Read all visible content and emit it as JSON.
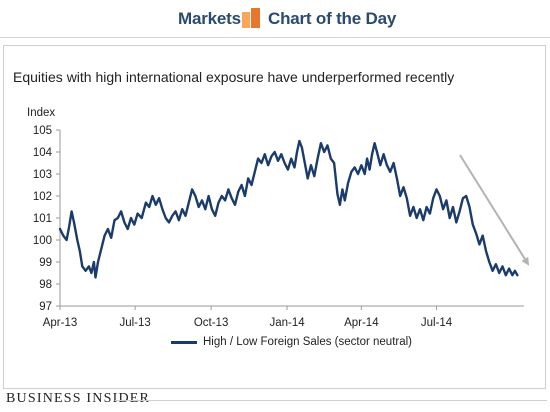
{
  "header": {
    "left_word": "Markets",
    "right_word": "Chart of the Day",
    "logo_colors": [
      "#f7a65a",
      "#e8772e"
    ]
  },
  "footer": {
    "brand": "Business Insider"
  },
  "colors": {
    "series": "#1b3c6b",
    "trend_arrow": "#b3b3b3",
    "header_text": "#2b4a6f"
  },
  "chart_data": {
    "type": "line",
    "title": "Equities with high international exposure have underperformed recently",
    "ylabel": "Index",
    "xlabel": "",
    "ylim": [
      97,
      105
    ],
    "yticks": [
      97,
      98,
      99,
      100,
      101,
      102,
      103,
      104,
      105
    ],
    "xlim": [
      "2013-04-01",
      "2014-10-15"
    ],
    "xticks": [
      {
        "label": "Apr-13",
        "date": "2013-04-01"
      },
      {
        "label": "Jul-13",
        "date": "2013-07-01"
      },
      {
        "label": "Oct-13",
        "date": "2013-10-01"
      },
      {
        "label": "Jan-14",
        "date": "2014-01-01"
      },
      {
        "label": "Apr-14",
        "date": "2014-04-01"
      },
      {
        "label": "Jul-14",
        "date": "2014-07-01"
      }
    ],
    "grid": false,
    "legend": "bottom",
    "series": [
      {
        "name": "High / Low Foreign Sales (sector neutral)",
        "points": [
          [
            "2013-04-01",
            100.5
          ],
          [
            "2013-04-05",
            100.2
          ],
          [
            "2013-04-09",
            100.0
          ],
          [
            "2013-04-12",
            100.6
          ],
          [
            "2013-04-15",
            101.3
          ],
          [
            "2013-04-18",
            100.8
          ],
          [
            "2013-04-22",
            100.0
          ],
          [
            "2013-04-25",
            99.5
          ],
          [
            "2013-04-28",
            98.8
          ],
          [
            "2013-05-02",
            98.6
          ],
          [
            "2013-05-06",
            98.8
          ],
          [
            "2013-05-09",
            98.5
          ],
          [
            "2013-05-12",
            99.0
          ],
          [
            "2013-05-14",
            98.3
          ],
          [
            "2013-05-17",
            99.0
          ],
          [
            "2013-05-21",
            99.6
          ],
          [
            "2013-05-25",
            100.2
          ],
          [
            "2013-05-29",
            100.5
          ],
          [
            "2013-06-02",
            100.1
          ],
          [
            "2013-06-06",
            100.9
          ],
          [
            "2013-06-10",
            101.0
          ],
          [
            "2013-06-14",
            101.3
          ],
          [
            "2013-06-18",
            100.8
          ],
          [
            "2013-06-22",
            100.5
          ],
          [
            "2013-06-26",
            101.0
          ],
          [
            "2013-06-30",
            100.7
          ],
          [
            "2013-07-04",
            101.2
          ],
          [
            "2013-07-09",
            101.0
          ],
          [
            "2013-07-14",
            101.7
          ],
          [
            "2013-07-18",
            101.5
          ],
          [
            "2013-07-22",
            102.0
          ],
          [
            "2013-07-26",
            101.6
          ],
          [
            "2013-07-30",
            101.9
          ],
          [
            "2013-08-03",
            101.4
          ],
          [
            "2013-08-07",
            101.0
          ],
          [
            "2013-08-11",
            100.8
          ],
          [
            "2013-08-15",
            101.1
          ],
          [
            "2013-08-19",
            101.3
          ],
          [
            "2013-08-23",
            100.9
          ],
          [
            "2013-08-27",
            101.4
          ],
          [
            "2013-08-31",
            101.1
          ],
          [
            "2013-09-04",
            101.7
          ],
          [
            "2013-09-08",
            102.3
          ],
          [
            "2013-09-12",
            102.0
          ],
          [
            "2013-09-16",
            101.5
          ],
          [
            "2013-09-20",
            101.8
          ],
          [
            "2013-09-24",
            101.4
          ],
          [
            "2013-09-28",
            102.0
          ],
          [
            "2013-10-02",
            101.4
          ],
          [
            "2013-10-06",
            101.1
          ],
          [
            "2013-10-10",
            101.7
          ],
          [
            "2013-10-14",
            102.0
          ],
          [
            "2013-10-18",
            101.8
          ],
          [
            "2013-10-22",
            102.3
          ],
          [
            "2013-10-26",
            101.9
          ],
          [
            "2013-10-30",
            101.6
          ],
          [
            "2013-11-03",
            102.2
          ],
          [
            "2013-11-07",
            102.5
          ],
          [
            "2013-11-11",
            102.0
          ],
          [
            "2013-11-15",
            102.8
          ],
          [
            "2013-11-19",
            102.5
          ],
          [
            "2013-11-23",
            103.1
          ],
          [
            "2013-11-27",
            103.7
          ],
          [
            "2013-12-01",
            103.5
          ],
          [
            "2013-12-05",
            103.9
          ],
          [
            "2013-12-09",
            103.4
          ],
          [
            "2013-12-13",
            103.8
          ],
          [
            "2013-12-17",
            104.0
          ],
          [
            "2013-12-21",
            103.6
          ],
          [
            "2013-12-25",
            103.9
          ],
          [
            "2013-12-29",
            103.5
          ],
          [
            "2014-01-02",
            103.2
          ],
          [
            "2014-01-06",
            103.7
          ],
          [
            "2014-01-10",
            103.3
          ],
          [
            "2014-01-13",
            104.0
          ],
          [
            "2014-01-16",
            104.5
          ],
          [
            "2014-01-19",
            104.2
          ],
          [
            "2014-01-22",
            103.6
          ],
          [
            "2014-01-26",
            102.8
          ],
          [
            "2014-01-30",
            103.4
          ],
          [
            "2014-02-03",
            102.9
          ],
          [
            "2014-02-07",
            103.7
          ],
          [
            "2014-02-11",
            104.4
          ],
          [
            "2014-02-15",
            104.0
          ],
          [
            "2014-02-19",
            104.3
          ],
          [
            "2014-02-23",
            103.7
          ],
          [
            "2014-02-27",
            103.5
          ],
          [
            "2014-03-03",
            102.1
          ],
          [
            "2014-03-06",
            101.6
          ],
          [
            "2014-03-09",
            102.3
          ],
          [
            "2014-03-12",
            101.8
          ],
          [
            "2014-03-16",
            102.6
          ],
          [
            "2014-03-20",
            103.1
          ],
          [
            "2014-03-24",
            103.3
          ],
          [
            "2014-03-28",
            103.0
          ],
          [
            "2014-04-01",
            103.4
          ],
          [
            "2014-04-05",
            103.0
          ],
          [
            "2014-04-08",
            103.7
          ],
          [
            "2014-04-11",
            103.2
          ],
          [
            "2014-04-14",
            103.9
          ],
          [
            "2014-04-17",
            104.4
          ],
          [
            "2014-04-20",
            104.0
          ],
          [
            "2014-04-24",
            103.4
          ],
          [
            "2014-04-28",
            103.9
          ],
          [
            "2014-05-02",
            103.4
          ],
          [
            "2014-05-06",
            103.1
          ],
          [
            "2014-05-10",
            103.5
          ],
          [
            "2014-05-14",
            102.8
          ],
          [
            "2014-05-18",
            102.0
          ],
          [
            "2014-05-22",
            102.4
          ],
          [
            "2014-05-26",
            101.9
          ],
          [
            "2014-05-30",
            101.1
          ],
          [
            "2014-06-03",
            101.5
          ],
          [
            "2014-06-07",
            101.0
          ],
          [
            "2014-06-11",
            101.4
          ],
          [
            "2014-06-15",
            100.9
          ],
          [
            "2014-06-19",
            101.5
          ],
          [
            "2014-06-23",
            101.2
          ],
          [
            "2014-06-27",
            101.9
          ],
          [
            "2014-07-01",
            102.3
          ],
          [
            "2014-07-05",
            102.0
          ],
          [
            "2014-07-09",
            101.4
          ],
          [
            "2014-07-13",
            101.8
          ],
          [
            "2014-07-17",
            101.0
          ],
          [
            "2014-07-21",
            101.5
          ],
          [
            "2014-07-25",
            100.8
          ],
          [
            "2014-07-29",
            101.3
          ],
          [
            "2014-08-02",
            101.9
          ],
          [
            "2014-08-06",
            102.0
          ],
          [
            "2014-08-10",
            101.5
          ],
          [
            "2014-08-14",
            100.7
          ],
          [
            "2014-08-18",
            100.3
          ],
          [
            "2014-08-22",
            99.8
          ],
          [
            "2014-08-26",
            100.2
          ],
          [
            "2014-08-30",
            99.5
          ],
          [
            "2014-09-03",
            99.0
          ],
          [
            "2014-09-07",
            98.6
          ],
          [
            "2014-09-11",
            98.9
          ],
          [
            "2014-09-15",
            98.5
          ],
          [
            "2014-09-19",
            98.8
          ],
          [
            "2014-09-23",
            98.4
          ],
          [
            "2014-09-27",
            98.7
          ],
          [
            "2014-10-01",
            98.4
          ],
          [
            "2014-10-04",
            98.6
          ],
          [
            "2014-10-07",
            98.4
          ]
        ]
      }
    ]
  }
}
